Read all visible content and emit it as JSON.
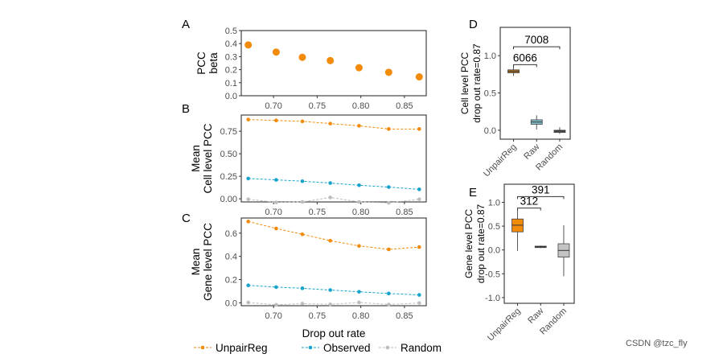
{
  "watermark": "CSDN @tzc_fly",
  "chart_data": [
    {
      "panel": "A",
      "type": "scatter",
      "ylabel": [
        "PCC",
        "beta"
      ],
      "x": [
        0.671,
        0.703,
        0.733,
        0.765,
        0.798,
        0.832,
        0.867
      ],
      "xticks": [
        "0.70",
        "0.75",
        "0.80",
        "0.85"
      ],
      "xtick_values": [
        0.7,
        0.75,
        0.8,
        0.85
      ],
      "yticks": [
        "0.0",
        "0.1",
        "0.2",
        "0.3",
        "0.4",
        "0.5"
      ],
      "ytick_values": [
        0,
        0.1,
        0.2,
        0.3,
        0.4,
        0.5
      ],
      "ylim": [
        0,
        0.5
      ],
      "xlim": [
        0.663,
        0.875
      ],
      "series": [
        {
          "values": [
            0.39,
            0.335,
            0.295,
            0.27,
            0.215,
            0.18,
            0.145
          ],
          "color": "#F28A0A"
        }
      ]
    },
    {
      "panel": "B",
      "type": "line",
      "ylabel": [
        "Mean",
        "Cell level PCC"
      ],
      "x": [
        0.671,
        0.703,
        0.733,
        0.765,
        0.798,
        0.832,
        0.867
      ],
      "xticks": [
        "0.70",
        "0.75",
        "0.80",
        "0.85"
      ],
      "xtick_values": [
        0.7,
        0.75,
        0.8,
        0.85
      ],
      "yticks": [
        "0.00",
        "0.25",
        "0.50",
        "0.75"
      ],
      "ytick_values": [
        0,
        0.25,
        0.5,
        0.75
      ],
      "ylim": [
        -0.035,
        0.93
      ],
      "xlim": [
        0.663,
        0.875
      ],
      "series": [
        {
          "name": "UnpairReg",
          "values": [
            0.88,
            0.87,
            0.86,
            0.835,
            0.81,
            0.775,
            0.775
          ],
          "color": "#F28A0A"
        },
        {
          "name": "Observed",
          "values": [
            0.225,
            0.21,
            0.195,
            0.175,
            0.15,
            0.13,
            0.105
          ],
          "color": "#18A3CC"
        },
        {
          "name": "Random",
          "values": [
            -0.005,
            -0.04,
            -0.035,
            0.015,
            -0.035,
            -0.045,
            -0.005
          ],
          "color": "#BDBDBD"
        }
      ]
    },
    {
      "panel": "C",
      "type": "line",
      "ylabel": [
        "Mean",
        "Gene level PCC"
      ],
      "xlabel": "Drop out rate",
      "x": [
        0.671,
        0.703,
        0.733,
        0.765,
        0.798,
        0.832,
        0.867
      ],
      "xticks": [
        "0.70",
        "0.75",
        "0.80",
        "0.85"
      ],
      "xtick_values": [
        0.7,
        0.75,
        0.8,
        0.85
      ],
      "yticks": [
        "0.0",
        "0.2",
        "0.4",
        "0.6"
      ],
      "ytick_values": [
        0,
        0.2,
        0.4,
        0.6
      ],
      "ylim": [
        -0.025,
        0.73
      ],
      "xlim": [
        0.663,
        0.875
      ],
      "series": [
        {
          "name": "UnpairReg",
          "values": [
            0.7,
            0.64,
            0.59,
            0.535,
            0.49,
            0.46,
            0.48
          ],
          "color": "#F28A0A"
        },
        {
          "name": "Observed",
          "values": [
            0.15,
            0.135,
            0.125,
            0.11,
            0.095,
            0.08,
            0.068
          ],
          "color": "#18A3CC"
        },
        {
          "name": "Random",
          "values": [
            0.003,
            -0.017,
            -0.007,
            -0.013,
            0.003,
            -0.015,
            -0.002
          ],
          "color": "#BDBDBD"
        }
      ]
    },
    {
      "panel": "D",
      "type": "box",
      "ylabel": [
        "Cell level PCC",
        "drop out rate=0.87"
      ],
      "categories": [
        "UnpairReg",
        "Raw",
        "Random"
      ],
      "yticks": [
        "0.0",
        "0.5",
        "1.0"
      ],
      "ytick_values": [
        0,
        0.5,
        1.0
      ],
      "ylim": [
        -0.12,
        1.38
      ],
      "boxes": [
        {
          "min": 0.73,
          "q1": 0.77,
          "median": 0.79,
          "q3": 0.81,
          "max": 0.85,
          "color": "#B8741E"
        },
        {
          "min": 0.01,
          "q1": 0.08,
          "median": 0.11,
          "q3": 0.14,
          "max": 0.2,
          "color": "#7FBFCA"
        },
        {
          "min": -0.05,
          "q1": -0.03,
          "median": -0.01,
          "q3": 0.0,
          "max": 0.04,
          "color": "#555555"
        }
      ],
      "brackets": [
        {
          "from": 0,
          "to": 1,
          "y": 0.88,
          "label": "6066"
        },
        {
          "from": 0,
          "to": 2,
          "y": 1.12,
          "label": "7008"
        }
      ]
    },
    {
      "panel": "E",
      "type": "box",
      "ylabel": [
        "Gene level PCC",
        "drop out rate=0.87"
      ],
      "categories": [
        "UnpairReg",
        "Raw",
        "Random"
      ],
      "yticks": [
        "-1.0",
        "-0.5",
        "0.0",
        "0.5",
        "1.0"
      ],
      "ytick_values": [
        -1,
        -0.5,
        0,
        0.5,
        1
      ],
      "ylim": [
        -1.12,
        1.38
      ],
      "boxes": [
        {
          "min": -0.02,
          "q1": 0.38,
          "median": 0.52,
          "q3": 0.65,
          "max": 0.85,
          "color": "#F28A0A"
        },
        {
          "min": 0.04,
          "q1": 0.05,
          "median": 0.07,
          "q3": 0.08,
          "max": 0.09,
          "color": "#444444"
        },
        {
          "min": -0.55,
          "q1": -0.15,
          "median": -0.01,
          "q3": 0.13,
          "max": 0.52,
          "color": "#C4C4C4"
        }
      ],
      "brackets": [
        {
          "from": 0,
          "to": 1,
          "y": 0.88,
          "label": "312"
        },
        {
          "from": 0,
          "to": 2,
          "y": 1.12,
          "label": "391"
        }
      ]
    }
  ],
  "legend": {
    "placement": "bottom",
    "items": [
      "UnpairReg",
      "Observed",
      "Random"
    ]
  }
}
